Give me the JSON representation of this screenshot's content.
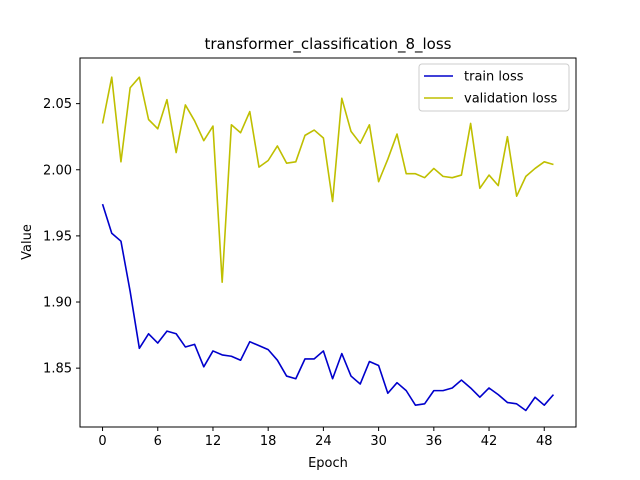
{
  "chart_data": {
    "type": "line",
    "title": "transformer_classification_8_loss",
    "xlabel": "Epoch",
    "ylabel": "Value",
    "xlim": [
      -2.45,
      51.45
    ],
    "ylim": [
      1.8055,
      2.0845
    ],
    "xticks": [
      0,
      6,
      12,
      18,
      24,
      30,
      36,
      42,
      48
    ],
    "yticks": [
      1.85,
      1.9,
      1.95,
      2.0,
      2.05
    ],
    "ytick_labels": [
      "1.85",
      "1.90",
      "1.95",
      "2.00",
      "2.05"
    ],
    "grid": false,
    "legend_position": "top-right",
    "x": [
      0,
      1,
      2,
      3,
      4,
      5,
      6,
      7,
      8,
      9,
      10,
      11,
      12,
      13,
      14,
      15,
      16,
      17,
      18,
      19,
      20,
      21,
      22,
      23,
      24,
      25,
      26,
      27,
      28,
      29,
      30,
      31,
      32,
      33,
      34,
      35,
      36,
      37,
      38,
      39,
      40,
      41,
      42,
      43,
      44,
      45,
      46,
      47,
      48,
      49
    ],
    "series": [
      {
        "name": "train loss",
        "color": "#0000cc",
        "values": [
          1.974,
          1.952,
          1.946,
          1.908,
          1.865,
          1.876,
          1.869,
          1.878,
          1.876,
          1.866,
          1.868,
          1.851,
          1.863,
          1.86,
          1.859,
          1.856,
          1.87,
          1.867,
          1.864,
          1.856,
          1.844,
          1.842,
          1.857,
          1.857,
          1.863,
          1.842,
          1.861,
          1.844,
          1.838,
          1.855,
          1.852,
          1.831,
          1.839,
          1.833,
          1.822,
          1.823,
          1.833,
          1.833,
          1.835,
          1.841,
          1.835,
          1.828,
          1.835,
          1.83,
          1.824,
          1.823,
          1.818,
          1.828,
          1.822,
          1.83
        ]
      },
      {
        "name": "validation loss",
        "color": "#bfbf00",
        "values": [
          2.035,
          2.07,
          2.006,
          2.062,
          2.07,
          2.038,
          2.031,
          2.053,
          2.013,
          2.049,
          2.037,
          2.022,
          2.033,
          1.915,
          2.034,
          2.028,
          2.044,
          2.002,
          2.007,
          2.018,
          2.005,
          2.006,
          2.026,
          2.03,
          2.024,
          1.976,
          2.054,
          2.029,
          2.02,
          2.034,
          1.991,
          2.008,
          2.027,
          1.997,
          1.997,
          1.994,
          2.001,
          1.995,
          1.994,
          1.996,
          2.035,
          1.986,
          1.996,
          1.988,
          2.025,
          1.98,
          1.995,
          2.001,
          2.006,
          2.004
        ]
      }
    ]
  }
}
